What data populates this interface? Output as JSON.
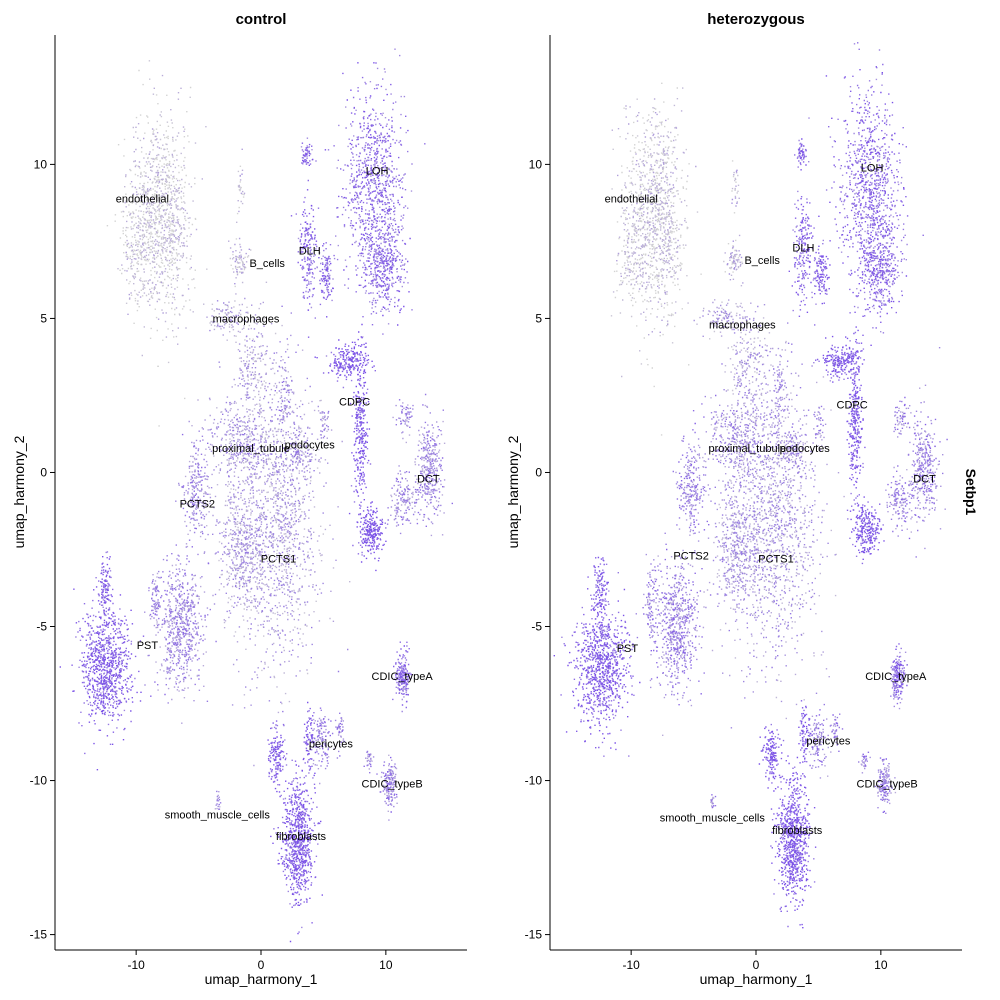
{
  "chart_data": {
    "type": "scatter",
    "feature": "Setbp1",
    "xlabel": "umap_harmony_1",
    "ylabel": "umap_harmony_2",
    "xlim": [
      -16.5,
      16.5
    ],
    "ylim": [
      -15.5,
      14.2
    ],
    "x_ticks": [
      -10,
      0,
      10
    ],
    "y_ticks": [
      -15,
      -10,
      -5,
      0,
      5,
      10
    ],
    "color_low": "#d3d3d3",
    "color_high": "#7b52e8",
    "panels": [
      {
        "title": "control",
        "clusters": [
          {
            "name": "endothelial",
            "label_x": -9.5,
            "label_y": 8.9,
            "expr": 0.08
          },
          {
            "name": "LOH",
            "label_x": 9.3,
            "label_y": 9.8,
            "expr": 0.75
          },
          {
            "name": "DLH",
            "label_x": 3.9,
            "label_y": 7.2,
            "expr": 0.8
          },
          {
            "name": "B_cells",
            "label_x": 0.5,
            "label_y": 6.8,
            "expr": 0.2
          },
          {
            "name": "macrophages",
            "label_x": -1.2,
            "label_y": 5.0,
            "expr": 0.35
          },
          {
            "name": "CDPC",
            "label_x": 7.5,
            "label_y": 2.3,
            "expr": 0.95
          },
          {
            "name": "proximal_tubule",
            "label_x": -0.8,
            "label_y": 0.8,
            "expr": 0.45
          },
          {
            "name": "podocytes",
            "label_x": 3.9,
            "label_y": 0.9,
            "expr": 0.5
          },
          {
            "name": "DCT",
            "label_x": 13.4,
            "label_y": -0.2,
            "expr": 0.55
          },
          {
            "name": "PCTS2",
            "label_x": -5.1,
            "label_y": -1.0,
            "expr": 0.55
          },
          {
            "name": "PCTS1",
            "label_x": 1.4,
            "label_y": -2.8,
            "expr": 0.4
          },
          {
            "name": "PST",
            "label_x": -9.1,
            "label_y": -5.6,
            "expr": 0.88
          },
          {
            "name": "CDIC_typeA",
            "label_x": 11.3,
            "label_y": -6.6,
            "expr": 0.75
          },
          {
            "name": "pericytes",
            "label_x": 5.6,
            "label_y": -8.8,
            "expr": 0.6
          },
          {
            "name": "CDIC_typeB",
            "label_x": 10.5,
            "label_y": -10.1,
            "expr": 0.6
          },
          {
            "name": "smooth_muscle_cells",
            "label_x": -3.5,
            "label_y": -11.1,
            "expr": 0.5
          },
          {
            "name": "fibroblasts",
            "label_x": 3.2,
            "label_y": -11.8,
            "expr": 0.9
          }
        ]
      },
      {
        "title": "heterozygous",
        "clusters": [
          {
            "name": "endothelial",
            "label_x": -10.0,
            "label_y": 8.9,
            "expr": 0.1
          },
          {
            "name": "LOH",
            "label_x": 9.3,
            "label_y": 9.9,
            "expr": 0.8
          },
          {
            "name": "DLH",
            "label_x": 3.8,
            "label_y": 7.3,
            "expr": 0.85
          },
          {
            "name": "B_cells",
            "label_x": 0.5,
            "label_y": 6.9,
            "expr": 0.25
          },
          {
            "name": "macrophages",
            "label_x": -1.1,
            "label_y": 4.8,
            "expr": 0.4
          },
          {
            "name": "CDPC",
            "label_x": 7.7,
            "label_y": 2.2,
            "expr": 0.95
          },
          {
            "name": "proximal_tubule",
            "label_x": -0.7,
            "label_y": 0.8,
            "expr": 0.5
          },
          {
            "name": "podocytes",
            "label_x": 3.9,
            "label_y": 0.8,
            "expr": 0.55
          },
          {
            "name": "DCT",
            "label_x": 13.5,
            "label_y": -0.2,
            "expr": 0.6
          },
          {
            "name": "PCTS2",
            "label_x": -5.2,
            "label_y": -2.7,
            "expr": 0.6
          },
          {
            "name": "PCTS1",
            "label_x": 1.6,
            "label_y": -2.8,
            "expr": 0.45
          },
          {
            "name": "PST",
            "label_x": -10.3,
            "label_y": -5.7,
            "expr": 0.9
          },
          {
            "name": "CDIC_typeA",
            "label_x": 11.2,
            "label_y": -6.6,
            "expr": 0.75
          },
          {
            "name": "pericytes",
            "label_x": 5.8,
            "label_y": -8.7,
            "expr": 0.6
          },
          {
            "name": "CDIC_typeB",
            "label_x": 10.5,
            "label_y": -10.1,
            "expr": 0.6
          },
          {
            "name": "smooth_muscle_cells",
            "label_x": -3.5,
            "label_y": -11.2,
            "expr": 0.5
          },
          {
            "name": "fibroblasts",
            "label_x": 3.3,
            "label_y": -11.6,
            "expr": 0.95
          }
        ]
      }
    ]
  }
}
